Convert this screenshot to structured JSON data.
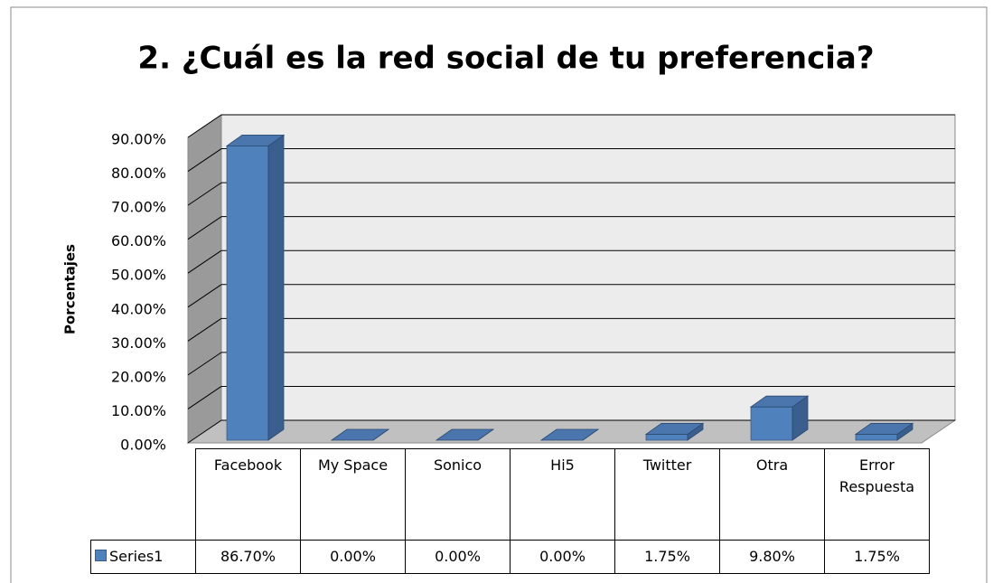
{
  "chart_data": {
    "type": "bar3d",
    "title": "2. ¿Cuál es la red social de tu preferencia?",
    "y_axis_label": "Porcentajes",
    "categories": [
      "Facebook",
      "My Space",
      "Sonico",
      "Hi5",
      "Twitter",
      "Otra",
      "Error Respuesta"
    ],
    "series": [
      {
        "name": "Series1",
        "color": "#4f81bd",
        "values": [
          86.7,
          0,
          0,
          0,
          1.75,
          9.8,
          1.75
        ],
        "value_labels": [
          "86.70%",
          "0.00%",
          "0.00%",
          "0.00%",
          "1.75%",
          "9.80%",
          "1.75%"
        ]
      }
    ],
    "ylim": [
      0,
      90
    ],
    "yticks": [
      {
        "value": 0,
        "label": "0.00%"
      },
      {
        "value": 10,
        "label": "10.00%"
      },
      {
        "value": 20,
        "label": "20.00%"
      },
      {
        "value": 30,
        "label": "30.00%"
      },
      {
        "value": 40,
        "label": "40.00%"
      },
      {
        "value": 50,
        "label": "50.00%"
      },
      {
        "value": 60,
        "label": "60.00%"
      },
      {
        "value": 70,
        "label": "70.00%"
      },
      {
        "value": 80,
        "label": "80.00%"
      },
      {
        "value": 90,
        "label": "90.00%"
      }
    ],
    "grid": true
  }
}
